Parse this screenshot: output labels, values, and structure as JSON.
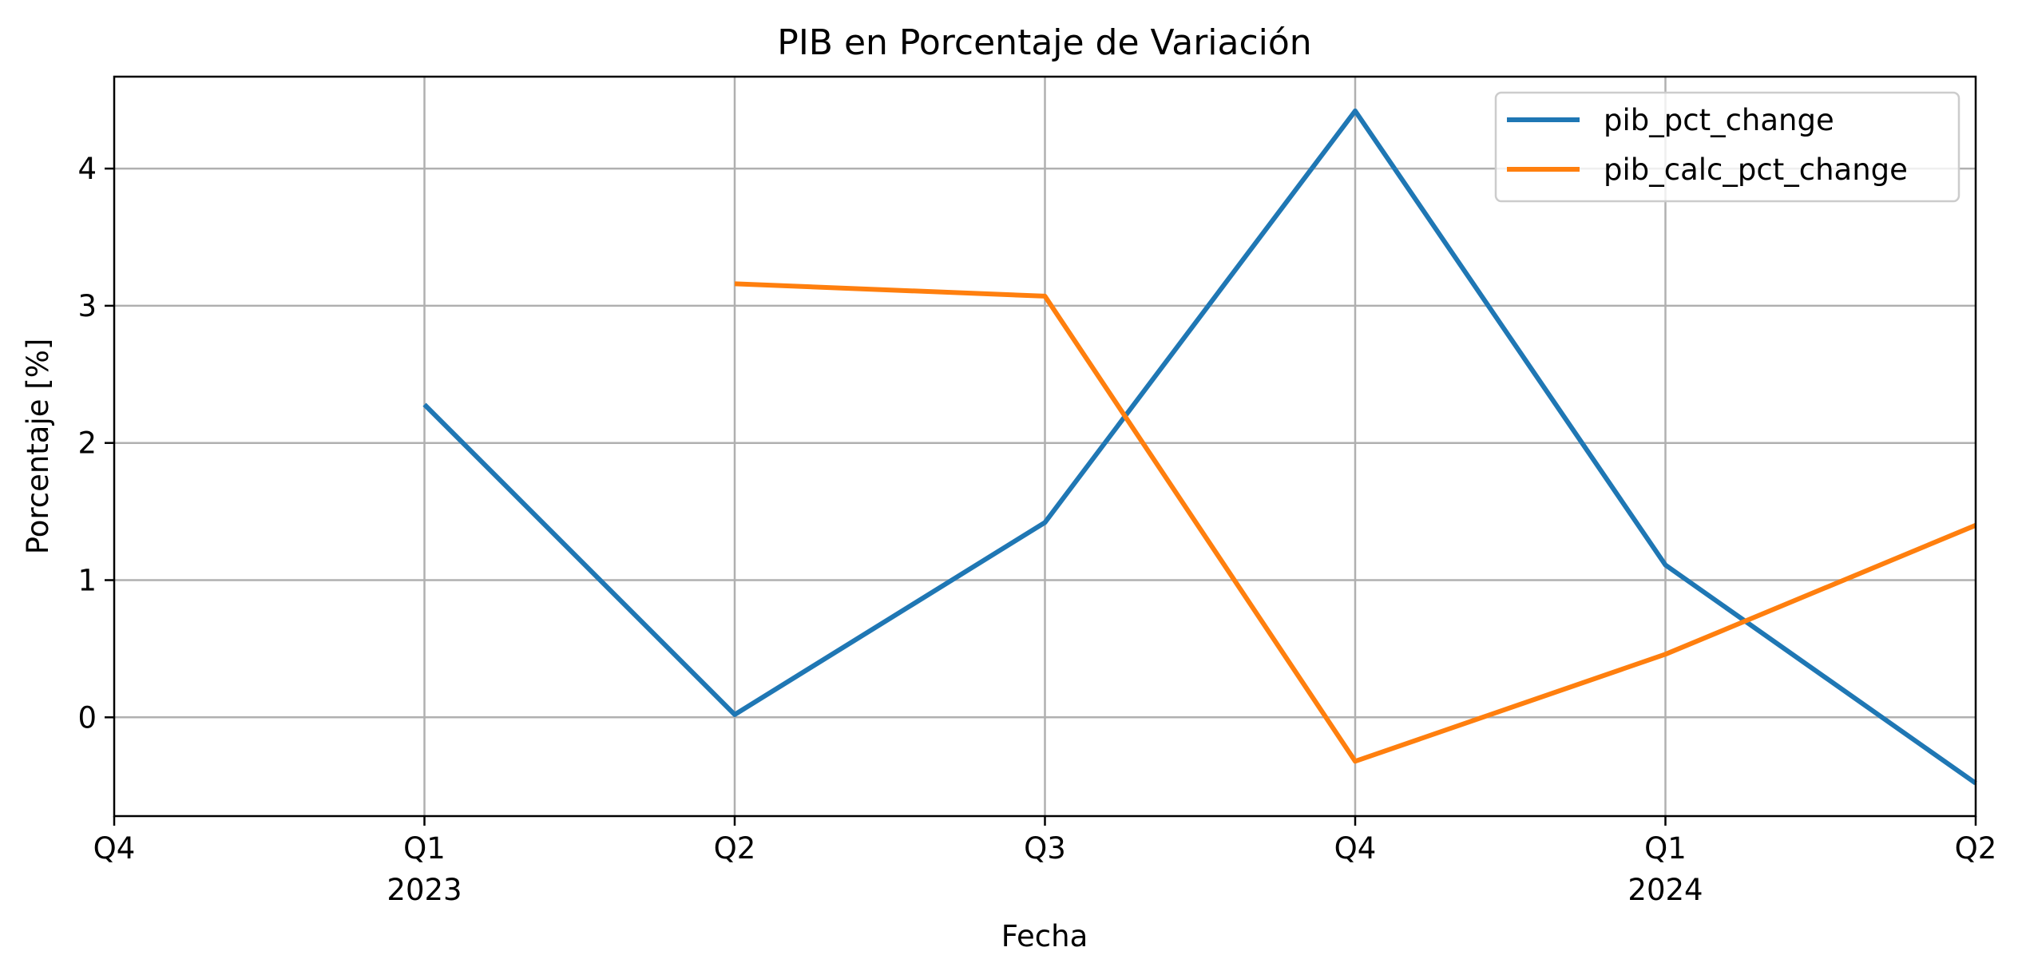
{
  "chart_data": {
    "type": "line",
    "title": "PIB en Porcentaje de Variación",
    "xlabel": "Fecha",
    "ylabel": "Porcentaje [%]",
    "x": [
      "2022Q4",
      "2023Q1",
      "2023Q2",
      "2023Q3",
      "2023Q4",
      "2024Q1",
      "2024Q2"
    ],
    "x_tick_labels": [
      {
        "quarter": "Q4",
        "year": ""
      },
      {
        "quarter": "Q1",
        "year": "2023"
      },
      {
        "quarter": "Q2",
        "year": ""
      },
      {
        "quarter": "Q3",
        "year": ""
      },
      {
        "quarter": "Q4",
        "year": ""
      },
      {
        "quarter": "Q1",
        "year": "2024"
      },
      {
        "quarter": "Q2",
        "year": ""
      }
    ],
    "yticks": [
      "0",
      "1",
      "2",
      "3",
      "4"
    ],
    "ylim": [
      -0.72,
      4.67
    ],
    "grid": true,
    "legend_position": "top-right",
    "series": [
      {
        "name": "pib_pct_change",
        "color": "#1f77b4",
        "values": [
          null,
          2.28,
          0.02,
          1.42,
          4.42,
          1.11,
          -0.48
        ]
      },
      {
        "name": "pib_calc_pct_change",
        "color": "#ff7f0e",
        "values": [
          null,
          null,
          3.16,
          3.07,
          -0.32,
          0.46,
          1.4
        ]
      }
    ]
  }
}
